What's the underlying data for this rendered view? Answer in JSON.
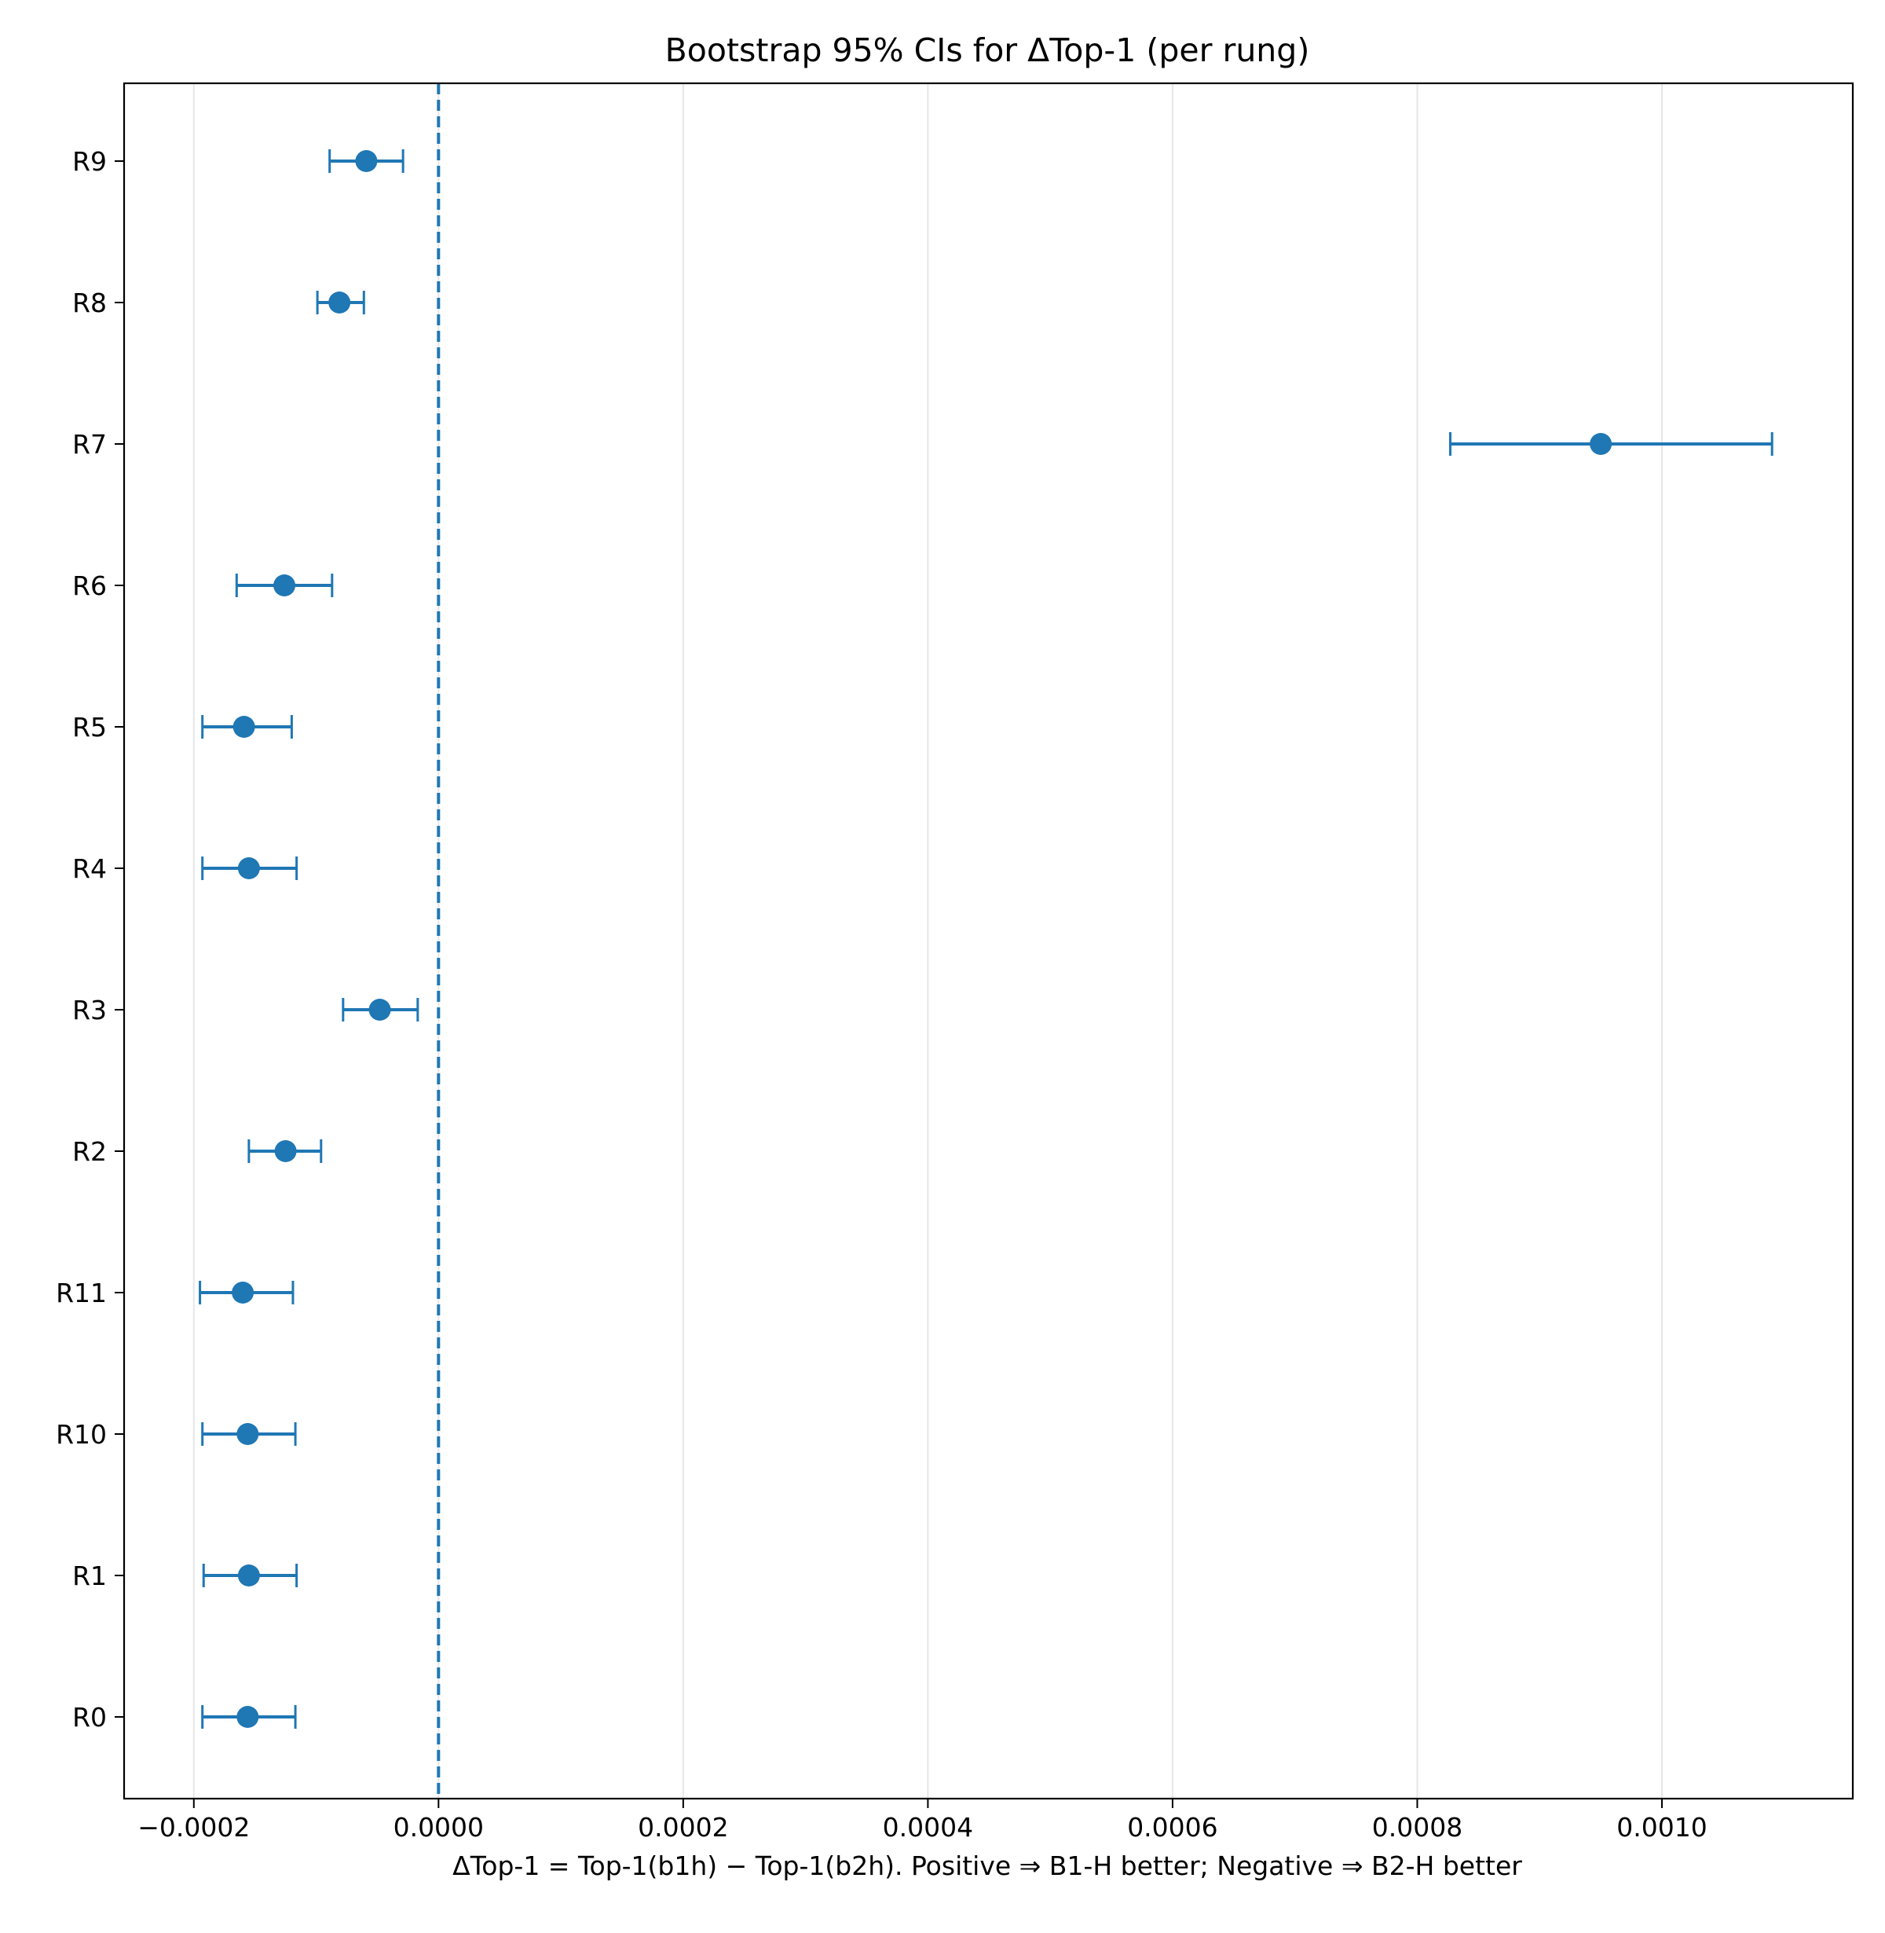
{
  "chart_data": {
    "type": "scatter",
    "title": "Bootstrap 95% CIs for ΔTop-1 (per rung)",
    "xlabel": "ΔTop-1 = Top-1(b1h) − Top-1(b2h). Positive ⇒ B1-H better; Negative ⇒ B2-H better",
    "ylabel": "",
    "xlim": [
      -0.000257,
      0.001156
    ],
    "x_ticks": [
      -0.0002,
      0.0,
      0.0002,
      0.0004,
      0.0006,
      0.0008,
      0.001
    ],
    "x_tick_labels": [
      "−0.0002",
      "0.0000",
      "0.0002",
      "0.0004",
      "0.0006",
      "0.0008",
      "0.0010"
    ],
    "categories": [
      "R0",
      "R1",
      "R10",
      "R11",
      "R2",
      "R3",
      "R4",
      "R5",
      "R6",
      "R7",
      "R8",
      "R9"
    ],
    "series": [
      {
        "values": [
          -0.000156,
          -0.000155,
          -0.000156,
          -0.00016,
          -0.000125,
          -4.8e-05,
          -0.000155,
          -0.000159,
          -0.000126,
          0.00095,
          -8.1e-05,
          -5.9e-05
        ],
        "lower": [
          -0.000193,
          -0.000192,
          -0.000193,
          -0.000195,
          -0.000155,
          -7.8e-05,
          -0.000193,
          -0.000193,
          -0.000165,
          0.000827,
          -9.9e-05,
          -8.9e-05
        ],
        "upper": [
          -0.000117,
          -0.000116,
          -0.000117,
          -0.000119,
          -9.6e-05,
          -1.7e-05,
          -0.000116,
          -0.00012,
          -8.7e-05,
          0.00109,
          -6.1e-05,
          -2.9e-05
        ]
      }
    ],
    "reference_line": {
      "x": 0.0,
      "style": "dashed"
    },
    "grid": "x-major",
    "colors": {
      "series": "#1f77b4",
      "grid": "#e6e6e6",
      "axes": "#000000"
    }
  }
}
